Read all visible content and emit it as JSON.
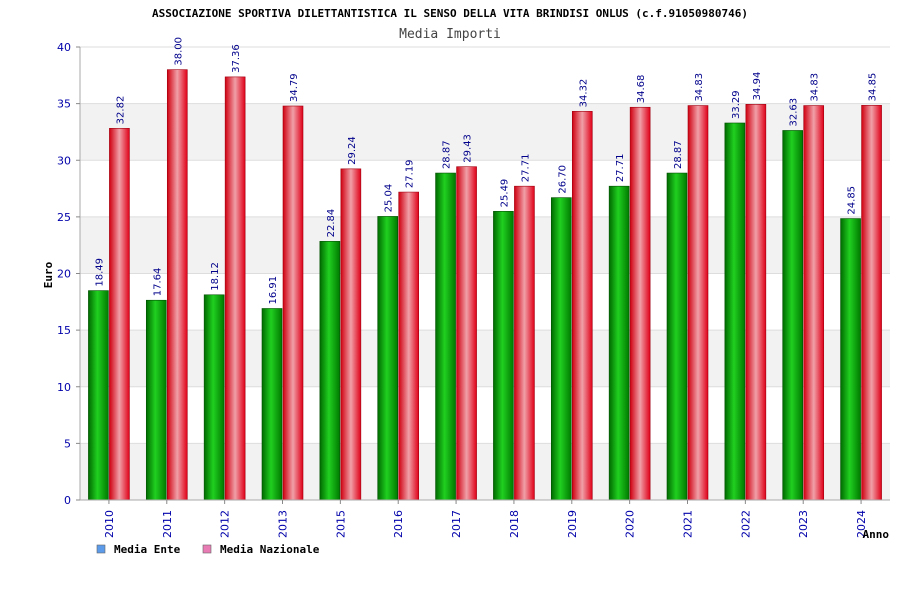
{
  "chart_data": {
    "type": "bar",
    "title": "ASSOCIAZIONE SPORTIVA DILETTANTISTICA IL SENSO DELLA VITA BRINDISI ONLUS (c.f.91050980746)",
    "subtitle": "Media Importi",
    "xlabel": "Anno",
    "ylabel": "Euro",
    "ylim": [
      0,
      40
    ],
    "yticks": [
      "0",
      "5",
      "10",
      "15",
      "20",
      "25",
      "30",
      "35",
      "40"
    ],
    "grid": true,
    "legend_position": "bottom-left",
    "categories": [
      "2010",
      "2011",
      "2012",
      "2013",
      "2015",
      "2016",
      "2017",
      "2018",
      "2019",
      "2020",
      "2021",
      "2022",
      "2023",
      "2024"
    ],
    "series": [
      {
        "name": "Media Ente",
        "color": "#00a000",
        "legend_color": "#5b9bea",
        "values": [
          18.49,
          17.64,
          18.12,
          16.91,
          22.84,
          25.04,
          28.87,
          25.49,
          26.7,
          27.71,
          28.87,
          33.29,
          32.63,
          24.85
        ],
        "labels": [
          "18.49",
          "17.64",
          "18.12",
          "16.91",
          "22.84",
          "25.04",
          "28.87",
          "25.49",
          "26.70",
          "27.71",
          "28.87",
          "33.29",
          "32.63",
          "24.85"
        ]
      },
      {
        "name": "Media Nazionale",
        "color": "#e01020",
        "legend_color": "#e87ab4",
        "values": [
          32.82,
          38.0,
          37.36,
          34.79,
          29.24,
          27.19,
          29.43,
          27.71,
          34.32,
          34.68,
          34.83,
          34.94,
          34.83,
          34.85
        ],
        "labels": [
          "32.82",
          "38.00",
          "37.36",
          "34.79",
          "29.24",
          "27.19",
          "29.43",
          "27.71",
          "34.32",
          "34.68",
          "34.83",
          "34.94",
          "34.83",
          "34.85"
        ]
      }
    ]
  }
}
